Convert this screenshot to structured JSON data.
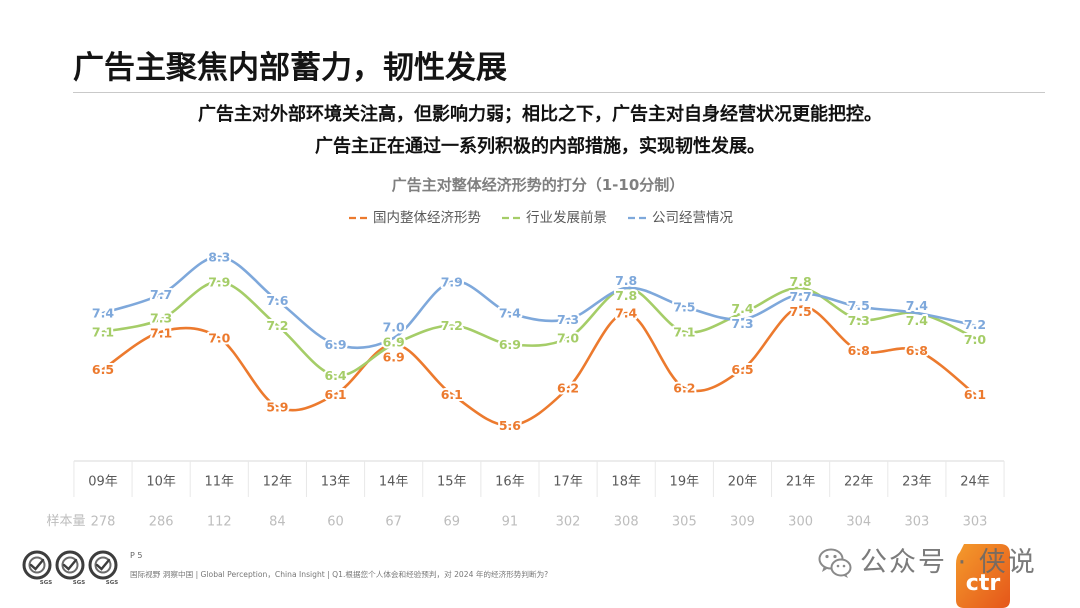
{
  "slide": {
    "title": "广告主聚焦内部蓄力，韧性发展",
    "subtitle_lines": [
      "广告主对外部环境关注高，但影响力弱；相比之下，广告主对自身经营状况更能把控。",
      "广告主正在通过一系列积极的内部措施，实现韧性发展。"
    ]
  },
  "chart_data": {
    "type": "line",
    "title": "广告主对整体经济形势的打分（1-10分制）",
    "categories": [
      "09年",
      "10年",
      "11年",
      "12年",
      "13年",
      "14年",
      "15年",
      "16年",
      "17年",
      "18年",
      "19年",
      "20年",
      "21年",
      "22年",
      "23年",
      "24年"
    ],
    "series": [
      {
        "name": "国内整体经济形势",
        "color": "#EC7A2E",
        "values": [
          6.5,
          7.1,
          7.0,
          5.9,
          6.1,
          6.9,
          6.1,
          5.6,
          6.2,
          7.4,
          6.2,
          6.5,
          7.5,
          6.8,
          6.8,
          6.1
        ]
      },
      {
        "name": "行业发展前景",
        "color": "#A5CD68",
        "values": [
          7.1,
          7.3,
          7.9,
          7.2,
          6.4,
          6.9,
          7.2,
          6.9,
          7.0,
          7.8,
          7.1,
          7.4,
          7.8,
          7.3,
          7.4,
          7.0
        ]
      },
      {
        "name": "公司经营情况",
        "color": "#7EA8DB",
        "values": [
          7.4,
          7.7,
          8.3,
          7.6,
          6.9,
          7.0,
          7.9,
          7.4,
          7.3,
          7.8,
          7.5,
          7.3,
          7.7,
          7.5,
          7.4,
          7.2
        ]
      }
    ],
    "ylim": [
      5,
      9
    ],
    "grid": false,
    "legend": "top",
    "sample_size": {
      "label": "样本量",
      "values": [
        278,
        286,
        112,
        84,
        60,
        67,
        69,
        91,
        302,
        308,
        305,
        309,
        300,
        304,
        303,
        303
      ]
    }
  },
  "footer": {
    "page": "P 5",
    "note": "国际视野 洞察中国 | Global Perception，China Insight | Q1.根据您个人体会和经验预判，对 2024 年的经济形势判断为?",
    "certification_logos": [
      "SGS",
      "SGS",
      "SGS"
    ],
    "brand_logo": "ctr"
  },
  "watermark": {
    "icon": "wechat-icon",
    "text": "公众号 · 侠说"
  }
}
